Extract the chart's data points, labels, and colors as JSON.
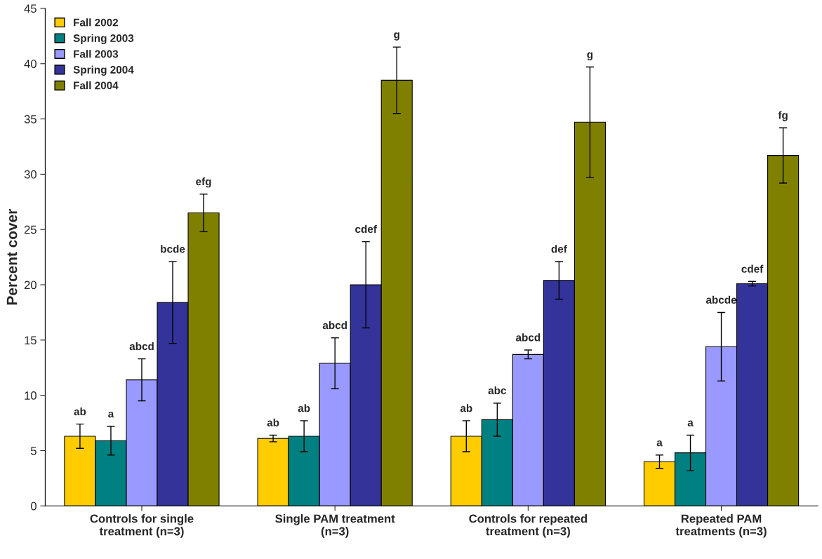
{
  "chart_data": {
    "type": "bar",
    "ylabel": "Percent cover",
    "categories": [
      "Controls for single\ntreatment (n=3)",
      "Single PAM treatment\n(n=3)",
      "Controls for repeated\ntreatment (n=3)",
      "Repeated PAM\ntreatments (n=3)"
    ],
    "series": [
      {
        "name": "Fall 2002",
        "color": "#ffcc00",
        "values": [
          6.3,
          6.1,
          6.3,
          4.0
        ],
        "errors": [
          1.1,
          0.3,
          1.4,
          0.6
        ]
      },
      {
        "name": "Spring 2003",
        "color": "#008080",
        "values": [
          5.9,
          6.3,
          7.8,
          4.8
        ],
        "errors": [
          1.3,
          1.4,
          1.5,
          1.6
        ]
      },
      {
        "name": "Fall 2003",
        "color": "#9999ff",
        "values": [
          11.4,
          12.9,
          13.7,
          14.4
        ],
        "errors": [
          1.9,
          2.3,
          0.4,
          3.1
        ]
      },
      {
        "name": "Spring 2004",
        "color": "#333399",
        "values": [
          18.4,
          20.0,
          20.4,
          20.1
        ],
        "errors": [
          3.7,
          3.9,
          1.7,
          0.2
        ]
      },
      {
        "name": "Fall 2004",
        "color": "#808000",
        "values": [
          26.5,
          38.5,
          34.7,
          31.7
        ],
        "errors": [
          1.7,
          3.0,
          5.0,
          2.5
        ]
      }
    ],
    "annotations": [
      "ab",
      "ab",
      "ab",
      "a",
      "a",
      "ab",
      "abc",
      "a",
      "abcd",
      "abcd",
      "abcd",
      "abcde",
      "bcde",
      "cdef",
      "def",
      "cdef",
      "efg",
      "g",
      "g",
      "fg"
    ],
    "ylim": [
      0,
      45
    ],
    "yticks": [
      0,
      5,
      10,
      15,
      20,
      25,
      30,
      35,
      40,
      45
    ],
    "grid": false,
    "legend": "top left"
  }
}
